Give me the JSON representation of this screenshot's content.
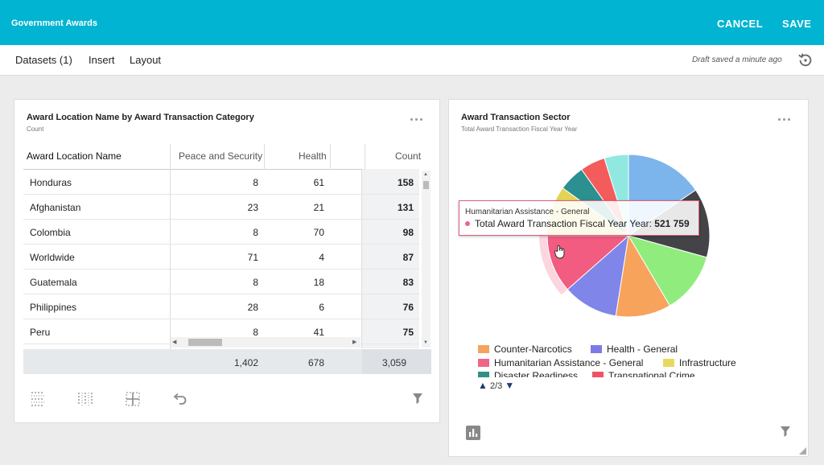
{
  "header": {
    "title": "Government Awards",
    "cancel_label": "CANCEL",
    "save_label": "SAVE"
  },
  "menu": {
    "datasets_label": "Datasets (1)",
    "insert_label": "Insert",
    "layout_label": "Layout",
    "draft_status": "Draft saved a minute ago"
  },
  "table_card": {
    "title": "Award Location Name by Award Transaction Category",
    "subtitle": "Count",
    "columns": [
      "Award Location Name",
      "Peace and Security",
      "Health",
      "Count"
    ],
    "rows": [
      {
        "name": "Honduras",
        "peace": "8",
        "health": "61",
        "count": "158"
      },
      {
        "name": "Afghanistan",
        "peace": "23",
        "health": "21",
        "count": "131"
      },
      {
        "name": "Colombia",
        "peace": "8",
        "health": "70",
        "count": "98"
      },
      {
        "name": "Worldwide",
        "peace": "71",
        "health": "4",
        "count": "87"
      },
      {
        "name": "Guatemala",
        "peace": "8",
        "health": "18",
        "count": "83"
      },
      {
        "name": "Philippines",
        "peace": "28",
        "health": "6",
        "count": "76"
      },
      {
        "name": "Peru",
        "peace": "8",
        "health": "41",
        "count": "75"
      }
    ],
    "totals": {
      "peace": "1,402",
      "health": "678",
      "count": "3,059"
    }
  },
  "pie_card": {
    "title": "Award Transaction Sector",
    "subtitle": "Total Award Transaction Fiscal Year Year",
    "legend": [
      {
        "label": "Counter-Narcotics",
        "color": "#f4a460"
      },
      {
        "label": "Health - General",
        "color": "#7b7be8"
      },
      {
        "label": "Humanitarian Assistance - General",
        "color": "#f0648a"
      },
      {
        "label": "Infrastructure",
        "color": "#e8d860"
      },
      {
        "label": "Disaster Readiness",
        "color": "#2f8f85"
      },
      {
        "label": "Transnational Crime",
        "color": "#ee5560"
      }
    ],
    "pager": "2/3",
    "tooltip": {
      "title": "Humanitarian Assistance - General",
      "label": "Total Award Transaction Fiscal Year Year:",
      "value": "521 759"
    }
  },
  "chart_data": {
    "type": "pie",
    "title": "Award Transaction Sector",
    "subtitle": "Total Award Transaction Fiscal Year Year",
    "slices": [
      {
        "color": "#7cb5ec",
        "fraction": 0.155
      },
      {
        "color": "#434348",
        "fraction": 0.138
      },
      {
        "color": "#90ed7d",
        "fraction": 0.122
      },
      {
        "color": "#f7a35c",
        "fraction": 0.11
      },
      {
        "color": "#8085e9",
        "fraction": 0.11
      },
      {
        "label": "Humanitarian Assistance - General",
        "value": 521759,
        "color": "#f15c80",
        "fraction": 0.115
      },
      {
        "color": "#e4d354",
        "fraction": 0.1
      },
      {
        "color": "#2b908f",
        "fraction": 0.052
      },
      {
        "color": "#f45b5b",
        "fraction": 0.05
      },
      {
        "color": "#91e8e1",
        "fraction": 0.048
      }
    ],
    "legend_position": "bottom"
  }
}
